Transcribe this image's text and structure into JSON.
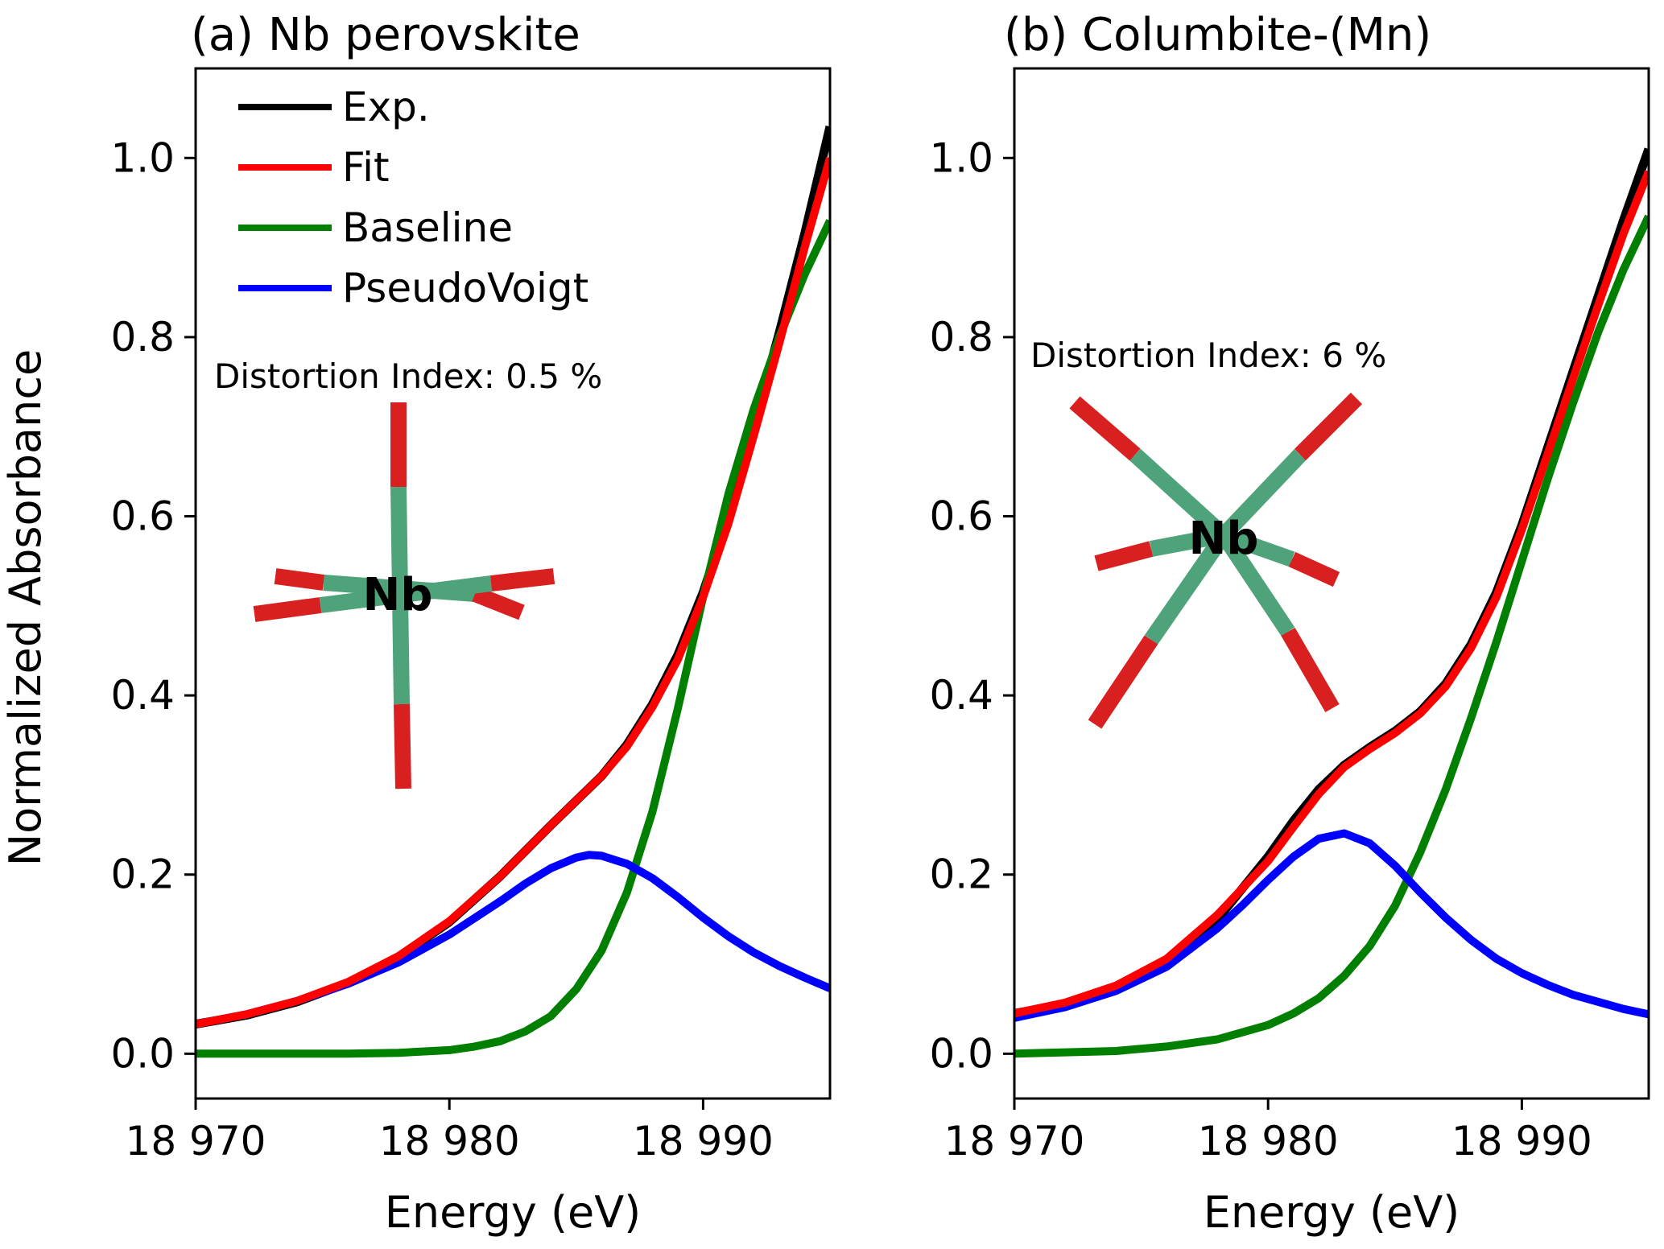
{
  "figure": {
    "ylabel": "Normalized Absorbance",
    "colors": {
      "exp": "#000000",
      "fit": "#ff0000",
      "baseline": "#007f00",
      "pv": "#0000ff",
      "bond_o": "#d92020",
      "bond_nb": "#4fa37a"
    }
  },
  "chart_data": [
    {
      "type": "line",
      "title": "(a) Nb perovskite",
      "xlabel": "Energy (eV)",
      "ylabel": "Normalized Absorbance",
      "xlim": [
        18970,
        18995
      ],
      "ylim": [
        -0.05,
        1.1
      ],
      "xticks": [
        18970,
        18980,
        18990
      ],
      "xtick_labels": [
        "18 970",
        "18 980",
        "18 990"
      ],
      "yticks": [
        0.0,
        0.2,
        0.4,
        0.6,
        0.8,
        1.0
      ],
      "ytick_labels": [
        "0.0",
        "0.2",
        "0.4",
        "0.6",
        "0.8",
        "1.0"
      ],
      "grid": false,
      "legend": {
        "position": "upper-left",
        "entries": [
          "Exp.",
          "Fit",
          "Baseline",
          "PseudoVoigt"
        ]
      },
      "annotation": "Distortion Index: 0.5 %",
      "structure_label": "Nb",
      "structure_icon": "nb-octahedron-regular",
      "series": [
        {
          "name": "Exp.",
          "color": "#000000",
          "x": [
            18970,
            18972,
            18974,
            18976,
            18978,
            18980,
            18982,
            18984,
            18986,
            18987,
            18988,
            18989,
            18990,
            18991,
            18992,
            18993,
            18994,
            18995
          ],
          "y": [
            0.033,
            0.043,
            0.058,
            0.079,
            0.108,
            0.147,
            0.198,
            0.255,
            0.31,
            0.345,
            0.39,
            0.445,
            0.515,
            0.6,
            0.7,
            0.805,
            0.915,
            1.035
          ]
        },
        {
          "name": "Fit",
          "color": "#ff0000",
          "x": [
            18970,
            18972,
            18974,
            18976,
            18978,
            18980,
            18982,
            18984,
            18986,
            18987,
            18988,
            18989,
            18990,
            18991,
            18992,
            18993,
            18994,
            18995
          ],
          "y": [
            0.033,
            0.044,
            0.059,
            0.08,
            0.109,
            0.148,
            0.198,
            0.255,
            0.31,
            0.343,
            0.387,
            0.44,
            0.51,
            0.592,
            0.69,
            0.793,
            0.9,
            1.0
          ]
        },
        {
          "name": "Baseline",
          "color": "#007f00",
          "x": [
            18970,
            18976,
            18978,
            18980,
            18981,
            18982,
            18983,
            18984,
            18985,
            18986,
            18987,
            18988,
            18989,
            18990,
            18991,
            18992,
            18993,
            18994,
            18995
          ],
          "y": [
            0.0,
            0.0,
            0.001,
            0.004,
            0.008,
            0.014,
            0.025,
            0.042,
            0.072,
            0.115,
            0.18,
            0.27,
            0.385,
            0.51,
            0.625,
            0.72,
            0.8,
            0.87,
            0.93
          ]
        },
        {
          "name": "PseudoVoigt",
          "color": "#0000ff",
          "x": [
            18970,
            18972,
            18974,
            18976,
            18978,
            18980,
            18982,
            18983,
            18984,
            18985,
            18985.5,
            18986,
            18987,
            18988,
            18989,
            18990,
            18991,
            18992,
            18993,
            18994,
            18995
          ],
          "y": [
            0.033,
            0.044,
            0.059,
            0.078,
            0.102,
            0.133,
            0.17,
            0.19,
            0.207,
            0.219,
            0.222,
            0.221,
            0.212,
            0.196,
            0.175,
            0.152,
            0.131,
            0.113,
            0.098,
            0.085,
            0.073
          ]
        }
      ]
    },
    {
      "type": "line",
      "title": "(b) Columbite-(Mn)",
      "xlabel": "Energy (eV)",
      "ylabel": "",
      "xlim": [
        18970,
        18995
      ],
      "ylim": [
        -0.05,
        1.1
      ],
      "xticks": [
        18970,
        18980,
        18990
      ],
      "xtick_labels": [
        "18 970",
        "18 980",
        "18 990"
      ],
      "yticks": [
        0.0,
        0.2,
        0.4,
        0.6,
        0.8,
        1.0
      ],
      "ytick_labels": [
        "0.0",
        "0.2",
        "0.4",
        "0.6",
        "0.8",
        "1.0"
      ],
      "grid": false,
      "annotation": "Distortion Index: 6 %",
      "structure_label": "Nb",
      "structure_icon": "nb-octahedron-distorted",
      "series": [
        {
          "name": "Exp.",
          "color": "#000000",
          "x": [
            18970,
            18972,
            18974,
            18976,
            18978,
            18980,
            18981,
            18982,
            18983,
            18984,
            18985,
            18986,
            18987,
            18988,
            18989,
            18990,
            18991,
            18992,
            18993,
            18994,
            18995
          ],
          "y": [
            0.045,
            0.055,
            0.072,
            0.1,
            0.15,
            0.22,
            0.26,
            0.295,
            0.322,
            0.342,
            0.36,
            0.382,
            0.413,
            0.457,
            0.515,
            0.59,
            0.675,
            0.76,
            0.845,
            0.93,
            1.01
          ]
        },
        {
          "name": "Fit",
          "color": "#ff0000",
          "x": [
            18970,
            18972,
            18974,
            18976,
            18978,
            18980,
            18981,
            18982,
            18983,
            18984,
            18985,
            18986,
            18987,
            18988,
            18989,
            18990,
            18991,
            18992,
            18993,
            18994,
            18995
          ],
          "y": [
            0.045,
            0.057,
            0.076,
            0.106,
            0.155,
            0.215,
            0.253,
            0.29,
            0.32,
            0.34,
            0.358,
            0.38,
            0.41,
            0.453,
            0.51,
            0.585,
            0.668,
            0.752,
            0.835,
            0.915,
            0.985
          ]
        },
        {
          "name": "Baseline",
          "color": "#007f00",
          "x": [
            18970,
            18974,
            18976,
            18978,
            18980,
            18981,
            18982,
            18983,
            18984,
            18985,
            18986,
            18987,
            18988,
            18989,
            18990,
            18991,
            18992,
            18993,
            18994,
            18995
          ],
          "y": [
            0.0,
            0.003,
            0.008,
            0.016,
            0.032,
            0.045,
            0.062,
            0.087,
            0.12,
            0.165,
            0.225,
            0.295,
            0.375,
            0.46,
            0.55,
            0.64,
            0.725,
            0.805,
            0.875,
            0.935
          ]
        },
        {
          "name": "PseudoVoigt",
          "color": "#0000ff",
          "x": [
            18970,
            18972,
            18974,
            18976,
            18978,
            18979,
            18980,
            18981,
            18982,
            18983,
            18984,
            18985,
            18986,
            18987,
            18988,
            18989,
            18990,
            18991,
            18992,
            18993,
            18994,
            18995
          ],
          "y": [
            0.04,
            0.052,
            0.07,
            0.097,
            0.14,
            0.166,
            0.194,
            0.22,
            0.24,
            0.246,
            0.235,
            0.21,
            0.18,
            0.152,
            0.127,
            0.106,
            0.09,
            0.077,
            0.066,
            0.058,
            0.05,
            0.044
          ]
        }
      ]
    }
  ]
}
